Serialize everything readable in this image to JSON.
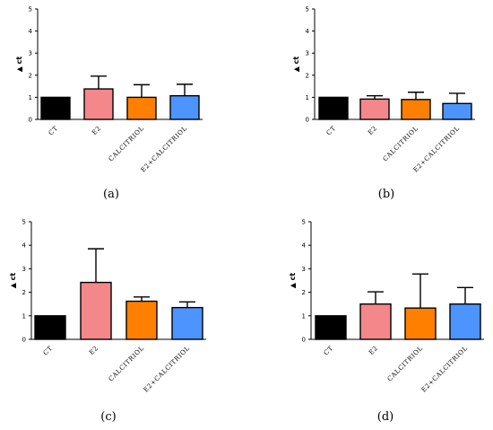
{
  "chart_data": [
    {
      "type": "bar",
      "panel_label": "(a)",
      "ylabel": "▲ ct",
      "ylim": [
        0,
        5
      ],
      "yticks": [
        "0",
        "1",
        "2",
        "3",
        "4",
        "5"
      ],
      "categories": [
        "CT",
        "E2",
        "CALCITRIOL",
        "E2+CALCITRIOL"
      ],
      "values": [
        1.0,
        1.38,
        1.0,
        1.07
      ],
      "error": [
        0,
        0.58,
        0.57,
        0.52
      ],
      "colors": [
        "#000000",
        "#f4878a",
        "#ff8000",
        "#4d94ff"
      ]
    },
    {
      "type": "bar",
      "panel_label": "(b)",
      "ylabel": "▲ ct",
      "ylim": [
        0,
        5
      ],
      "yticks": [
        "0",
        "1",
        "2",
        "3",
        "4",
        "5"
      ],
      "categories": [
        "CT",
        "E2",
        "CALCITRIOL",
        "E2+CALCITRIOL"
      ],
      "values": [
        1.0,
        0.92,
        0.9,
        0.72
      ],
      "error": [
        0,
        0.15,
        0.33,
        0.46
      ],
      "colors": [
        "#000000",
        "#f4878a",
        "#ff8000",
        "#4d94ff"
      ]
    },
    {
      "type": "bar",
      "panel_label": "(c)",
      "ylabel": "▲ ct",
      "ylim": [
        0,
        5
      ],
      "yticks": [
        "0",
        "1",
        "2",
        "3",
        "4",
        "5"
      ],
      "categories": [
        "CT",
        "E2",
        "CALCITRIOL",
        "E2+CALCITRIOL"
      ],
      "values": [
        1.0,
        2.42,
        1.62,
        1.35
      ],
      "error": [
        0,
        1.43,
        0.18,
        0.24
      ],
      "colors": [
        "#000000",
        "#f4878a",
        "#ff8000",
        "#4d94ff"
      ]
    },
    {
      "type": "bar",
      "panel_label": "(d)",
      "ylabel": "▲ ct",
      "ylim": [
        0,
        5
      ],
      "yticks": [
        "0",
        "1",
        "2",
        "3",
        "4",
        "5"
      ],
      "categories": [
        "CT",
        "E2",
        "CALCITRIOL",
        "E2+CALCITRIOL"
      ],
      "values": [
        1.0,
        1.5,
        1.33,
        1.5
      ],
      "error": [
        0,
        0.52,
        1.45,
        0.7
      ],
      "colors": [
        "#000000",
        "#f4878a",
        "#ff8000",
        "#4d94ff"
      ]
    }
  ]
}
